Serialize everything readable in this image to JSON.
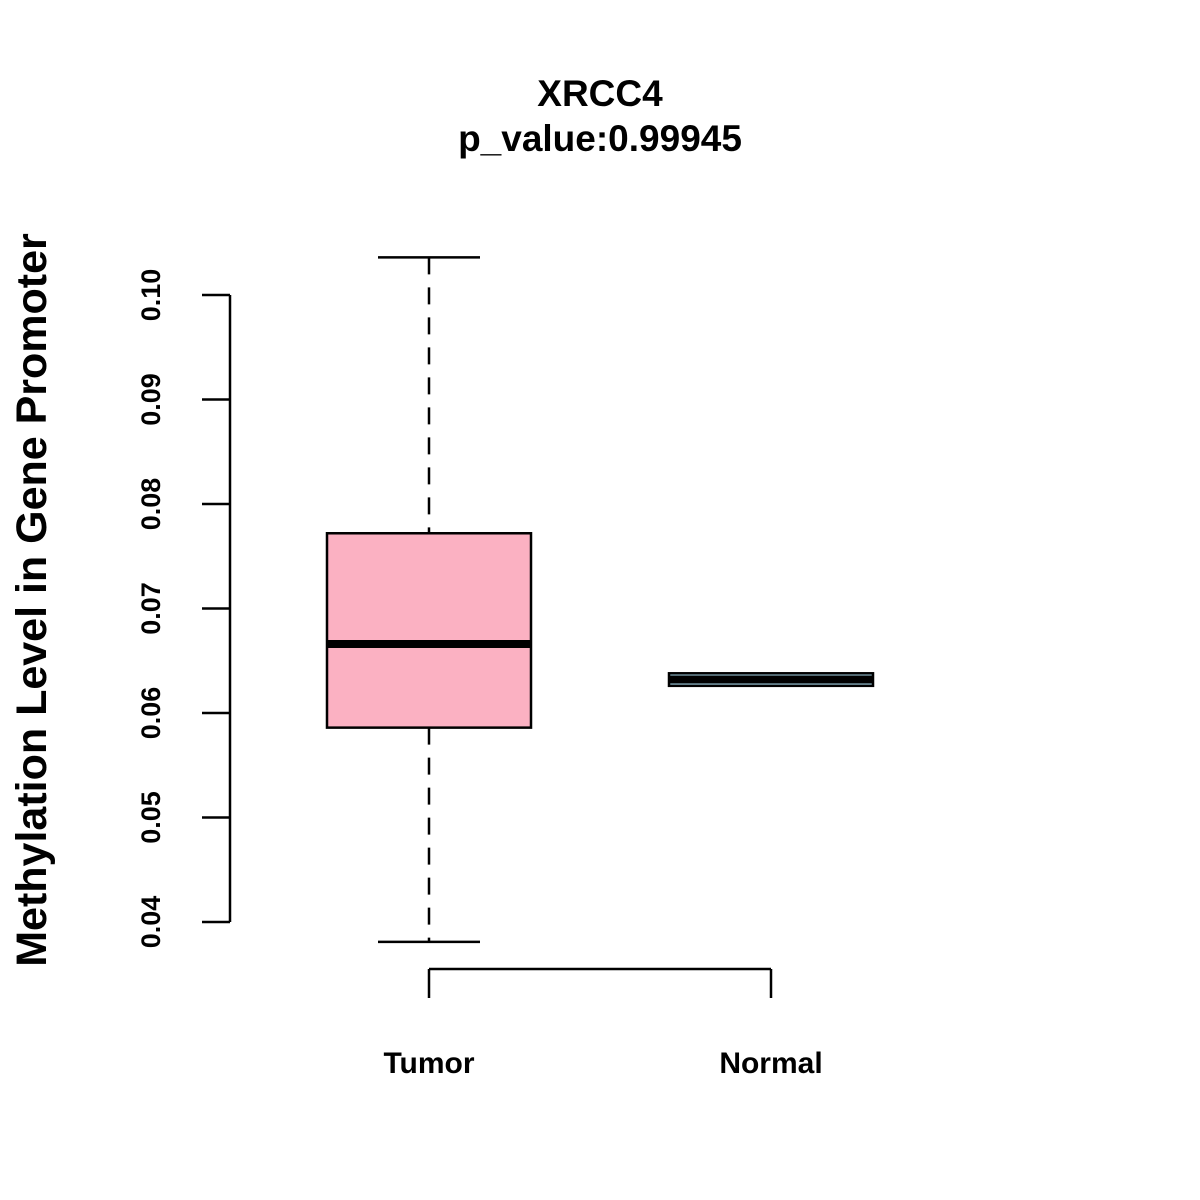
{
  "chart_data": {
    "type": "boxplot",
    "title": "XRCC4",
    "subtitle": "p_value:0.99945",
    "xlabel": "",
    "ylabel": "Methylation Level in Gene Promoter",
    "ylim": [
      0.04,
      0.1
    ],
    "yticks": [
      "0.04",
      "0.05",
      "0.06",
      "0.07",
      "0.08",
      "0.09",
      "0.10"
    ],
    "yticks_values": [
      0.04,
      0.05,
      0.06,
      0.07,
      0.08,
      0.09,
      0.1
    ],
    "categories": [
      "Tumor",
      "Normal"
    ],
    "boxes": [
      {
        "category": "Tumor",
        "whisker_low": 0.0381,
        "q1": 0.0586,
        "median": 0.0666,
        "q3": 0.0772,
        "whisker_high": 0.1036,
        "fill": "#fbb1c2"
      },
      {
        "category": "Normal",
        "whisker_low": 0.0626,
        "q1": 0.0626,
        "median": 0.0632,
        "q3": 0.0638,
        "whisker_high": 0.0638,
        "fill": "#a9d8ea"
      }
    ],
    "grid": false
  }
}
